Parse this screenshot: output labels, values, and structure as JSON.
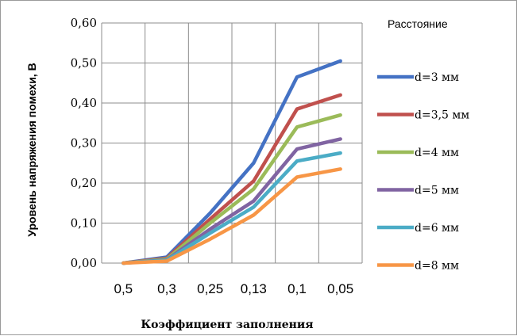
{
  "chart_data": {
    "type": "line",
    "categories": [
      "0,5",
      "0,3",
      "0,25",
      "0,13",
      "0,1",
      "0,05"
    ],
    "ylabel": "Уровень напряжения помехи, В",
    "xlabel": "Коэффициент заполнения",
    "ylim": [
      0,
      0.6
    ],
    "yticks": [
      0,
      0.1,
      0.2,
      0.3,
      0.4,
      0.5,
      0.6
    ],
    "ytick_labels": [
      "0,00",
      "0,10",
      "0,20",
      "0,30",
      "0,40",
      "0,50",
      "0,60"
    ],
    "grid": true,
    "legend": {
      "title": "Расстояние",
      "position": "right"
    },
    "series": [
      {
        "name": "d=3 мм",
        "color": "#4472C4",
        "values": [
          0,
          0.015,
          0.125,
          0.25,
          0.465,
          0.505
        ]
      },
      {
        "name": "d=3,5 мм",
        "color": "#C0504D",
        "values": [
          0,
          0.012,
          0.11,
          0.205,
          0.385,
          0.42
        ]
      },
      {
        "name": "d=4 мм",
        "color": "#9BBB59",
        "values": [
          0,
          0.01,
          0.1,
          0.185,
          0.34,
          0.37
        ]
      },
      {
        "name": "d=5 мм",
        "color": "#8064A2",
        "values": [
          0,
          0.008,
          0.085,
          0.155,
          0.285,
          0.31
        ]
      },
      {
        "name": "d=6 мм",
        "color": "#4BACC6",
        "values": [
          0,
          0.007,
          0.075,
          0.14,
          0.255,
          0.275
        ]
      },
      {
        "name": "d=8 мм",
        "color": "#F79646",
        "values": [
          0,
          0.005,
          0.06,
          0.12,
          0.215,
          0.235
        ]
      }
    ]
  }
}
